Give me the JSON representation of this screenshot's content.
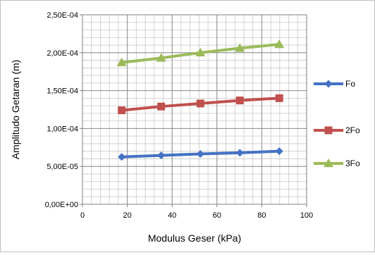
{
  "chart_data": {
    "type": "line",
    "xlabel": "Modulus  Geser (kPa)",
    "ylabel": "Amplitudo Getaran (m)",
    "xlim": [
      0,
      100
    ],
    "ylim": [
      0,
      0.00025
    ],
    "x_ticks": [
      "0",
      "20",
      "40",
      "60",
      "80",
      "100"
    ],
    "y_ticks": [
      "0,00E+00",
      "5,00E-05",
      "1,00E-04",
      "1,50E-04",
      "2,00E-04",
      "2,50E-04"
    ],
    "grid": true,
    "minor_grid": true,
    "legend_position": "right",
    "series": [
      {
        "name": "Fo",
        "color": "#4472c4",
        "marker": "diamond",
        "x": [
          17.5,
          35.1,
          52.6,
          70.2,
          87.8
        ],
        "y": [
          6.25e-05,
          6.45e-05,
          6.65e-05,
          6.8e-05,
          7e-05
        ]
      },
      {
        "name": "2Fo",
        "color": "#c0504d",
        "marker": "square",
        "x": [
          17.5,
          35.1,
          52.6,
          70.2,
          87.8
        ],
        "y": [
          0.000124,
          0.000129,
          0.000133,
          0.000137,
          0.00014
        ]
      },
      {
        "name": "3Fo",
        "color": "#9bbb59",
        "marker": "triangle",
        "x": [
          17.5,
          35.1,
          52.6,
          70.2,
          87.8
        ],
        "y": [
          0.000187,
          0.000193,
          0.0002,
          0.000206,
          0.000211
        ]
      }
    ]
  }
}
